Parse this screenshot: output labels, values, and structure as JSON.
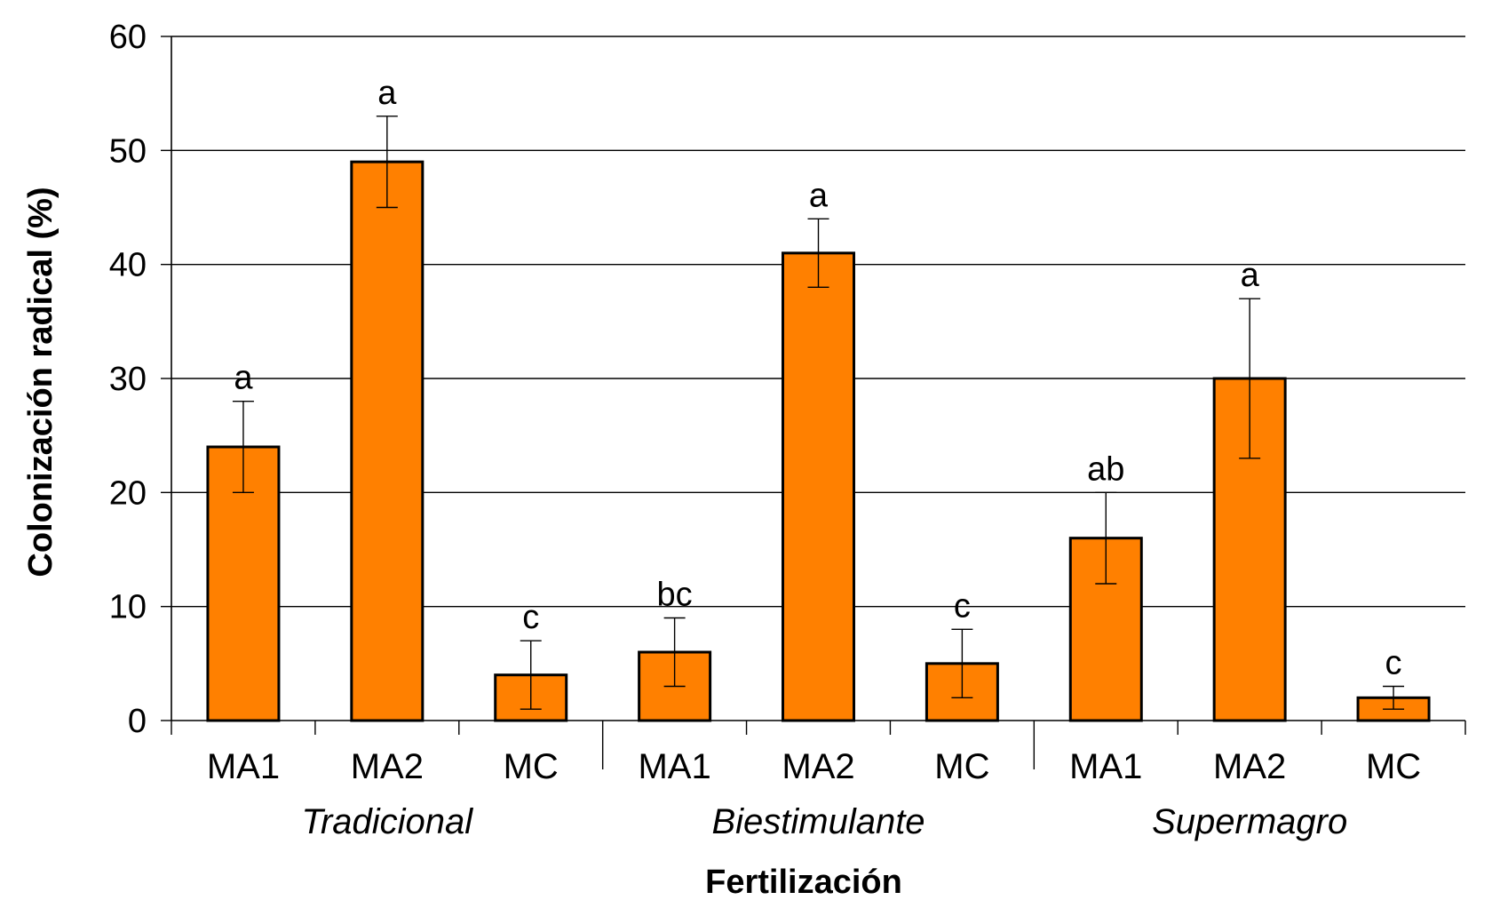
{
  "chart_data": {
    "type": "bar",
    "title": "",
    "xlabel": "Fertilización",
    "ylabel": "Colonización radical (%)",
    "ylim": [
      0,
      60
    ],
    "yticks": [
      0,
      10,
      20,
      30,
      40,
      50,
      60
    ],
    "grid": true,
    "legend": "none",
    "bar_color": "#ff8000",
    "groups": [
      "Tradicional",
      "Biestimulante",
      "Supermagro"
    ],
    "categories": [
      "MA1",
      "MA2",
      "MC",
      "MA1",
      "MA2",
      "MC",
      "MA1",
      "MA2",
      "MC"
    ],
    "values": [
      24,
      49,
      4,
      6,
      41,
      5,
      16,
      30,
      2
    ],
    "error_low": [
      20,
      45,
      1,
      3,
      38,
      2,
      12,
      23,
      1
    ],
    "error_high": [
      28,
      53,
      7,
      9,
      44,
      8,
      20,
      37,
      3
    ],
    "significance_letters": [
      "a",
      "a",
      "c",
      "bc",
      "a",
      "c",
      "ab",
      "a",
      "c"
    ]
  }
}
